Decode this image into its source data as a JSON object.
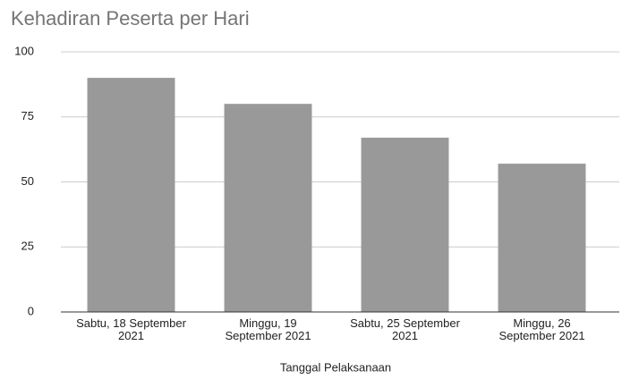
{
  "chart_data": {
    "type": "bar",
    "title": "Kehadiran Peserta per Hari",
    "categories": [
      "Sabtu, 18 September\n2021",
      "Minggu, 19\nSeptember 2021",
      "Sabtu, 25 September\n2021",
      "Minggu, 26\nSeptember 2021"
    ],
    "values": [
      90,
      80,
      67,
      57
    ],
    "color": "#999999",
    "xlabel": "Tanggal Pelaksanaan",
    "ylim": [
      0,
      100
    ],
    "yticks": [
      0,
      25,
      50,
      75,
      100
    ],
    "grid": true
  }
}
